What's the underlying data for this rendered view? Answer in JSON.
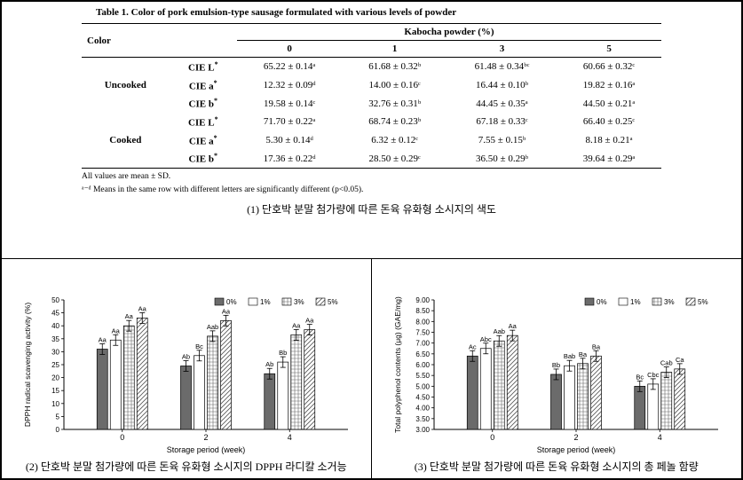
{
  "table": {
    "title": "Table 1. Color of pork emulsion-type sausage formulated with various levels of powder",
    "header_group": "Kabocha powder (%)",
    "corner": "Color",
    "levels": [
      "0",
      "1",
      "3",
      "5"
    ],
    "groups": [
      {
        "name": "Uncooked",
        "rows": [
          {
            "param": "CIE L*",
            "vals": [
              "65.22 ± 0.14ᵃ",
              "61.68 ± 0.32ᵇ",
              "61.48 ± 0.34ᵇᶜ",
              "60.66 ± 0.32ᶜ"
            ]
          },
          {
            "param": "CIE a*",
            "vals": [
              "12.32 ± 0.09ᵈ",
              "14.00 ± 0.16ᶜ",
              "16.44 ± 0.10ᵇ",
              "19.82 ± 0.16ᵃ"
            ]
          },
          {
            "param": "CIE b*",
            "vals": [
              "19.58 ± 0.14ᶜ",
              "32.76 ± 0.31ᵇ",
              "44.45 ± 0.35ᵃ",
              "44.50 ± 0.21ᵃ"
            ]
          }
        ]
      },
      {
        "name": "Cooked",
        "rows": [
          {
            "param": "CIE L*",
            "vals": [
              "71.70 ± 0.22ᵃ",
              "68.74 ± 0.23ᵇ",
              "67.18 ± 0.33ᶜ",
              "66.40 ± 0.25ᶜ"
            ]
          },
          {
            "param": "CIE a*",
            "vals": [
              "5.30 ± 0.14ᵈ",
              "6.32 ± 0.12ᶜ",
              "7.55 ± 0.15ᵇ",
              "8.18 ± 0.21ᵃ"
            ]
          },
          {
            "param": "CIE b*",
            "vals": [
              "17.36 ± 0.22ᵈ",
              "28.50 ± 0.29ᶜ",
              "36.50 ± 0.29ᵇ",
              "39.64 ± 0.29ᵃ"
            ]
          }
        ]
      }
    ],
    "footnotes": [
      "All values are mean ± SD.",
      "ᵃ⁻ᵈ Means in the same row with different letters are significantly different (p<0.05)."
    ],
    "caption_kr": "(1) 단호박 분말 첨가량에 따른 돈육 유화형 소시지의 색도"
  },
  "chartLegend": [
    "0%",
    "1%",
    "3%",
    "5%"
  ],
  "legendFills": [
    "solid_gray",
    "white",
    "grid",
    "diag"
  ],
  "xlabel": "Storage period (week)",
  "xcats": [
    "0",
    "2",
    "4"
  ],
  "chart2": {
    "ylabel": "DPPH radical scavenging activity (%)",
    "ymin": 0,
    "ymax": 50,
    "ystep": 5,
    "series": [
      {
        "vals": [
          31,
          34.5,
          40,
          43
        ],
        "ann": [
          "Aa",
          "Aa",
          "Aa",
          "Aa"
        ]
      },
      {
        "vals": [
          24.5,
          28.5,
          36,
          42
        ],
        "ann": [
          "Ab",
          "Bc",
          "Aab",
          "Aa"
        ]
      },
      {
        "vals": [
          21.5,
          26,
          36.5,
          38.5
        ],
        "ann": [
          "Ab",
          "Bb",
          "Aa",
          "Aa"
        ]
      }
    ],
    "caption": "(2) 단호박 분말 첨가량에 따른 돈육 유화형 소시지의 DPPH 라디칼 소거능"
  },
  "chart3": {
    "ylabel": "Total polyphenol contents (μg) (GAE/mg)",
    "ymin": 3,
    "ymax": 9,
    "ystep": 0.5,
    "series": [
      {
        "vals": [
          6.4,
          6.75,
          7.1,
          7.35
        ],
        "ann": [
          "Ac",
          "Abc",
          "Aab",
          "Aa"
        ]
      },
      {
        "vals": [
          5.55,
          5.95,
          6.05,
          6.4
        ],
        "ann": [
          "Bb",
          "Bab",
          "Ba",
          "Ba"
        ]
      },
      {
        "vals": [
          5.0,
          5.1,
          5.65,
          5.8
        ],
        "ann": [
          "Bc",
          "Cbc",
          "Cab",
          "Ca"
        ]
      }
    ],
    "caption": "(3) 단호박 분말 첨가량에 따른 돈육 유화형 소시지의 총 페놀 함량"
  },
  "colors": {
    "solid_gray": "#6b6b6b",
    "grid_line": "#888",
    "axis": "#000",
    "err": "#000",
    "bar_stroke": "#000"
  },
  "barStyle": {
    "barWidth": 12,
    "groupGap": 40,
    "barGap": 3,
    "errH": 4
  }
}
